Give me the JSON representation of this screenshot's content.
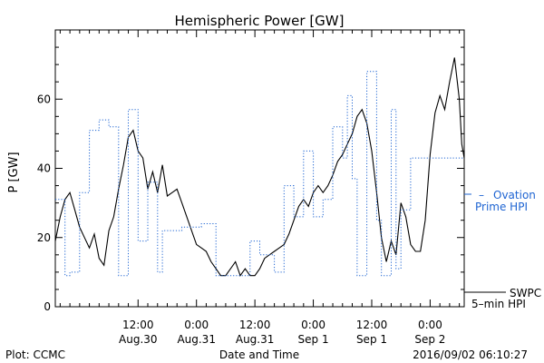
{
  "chart_data": {
    "type": "line",
    "title": "Hemispheric Power [GW]",
    "xlabel": "Date and Time",
    "ylabel": "P [GW]",
    "xlim": [
      "2016-08-29T19:00",
      "2016-09-02T07:00"
    ],
    "ylim": [
      0,
      80
    ],
    "y_ticks": [
      0,
      20,
      40,
      60
    ],
    "x_ticks": [
      {
        "t": "2016-08-30T12:00",
        "line1": "12:00",
        "line2": "Aug.30"
      },
      {
        "t": "2016-08-31T00:00",
        "line1": "0:00",
        "line2": "Aug.31"
      },
      {
        "t": "2016-08-31T12:00",
        "line1": "12:00",
        "line2": "Aug.31"
      },
      {
        "t": "2016-09-01T00:00",
        "line1": "0:00",
        "line2": "Sep 1"
      },
      {
        "t": "2016-09-01T12:00",
        "line1": "12:00",
        "line2": "Sep 1"
      },
      {
        "t": "2016-09-02T00:00",
        "line1": "0:00",
        "line2": "Sep 2"
      }
    ],
    "grid": false,
    "legend_position": "right",
    "series": [
      {
        "name": "SWPC 5-min HPI",
        "style": "solid",
        "color": "#000000",
        "points": [
          [
            "2016-08-29T19:00",
            19
          ],
          [
            "2016-08-29T20:00",
            26
          ],
          [
            "2016-08-29T21:00",
            31
          ],
          [
            "2016-08-29T22:00",
            33
          ],
          [
            "2016-08-29T23:00",
            28
          ],
          [
            "2016-08-30T00:00",
            23
          ],
          [
            "2016-08-30T01:00",
            20
          ],
          [
            "2016-08-30T02:00",
            17
          ],
          [
            "2016-08-30T03:00",
            21
          ],
          [
            "2016-08-30T04:00",
            14
          ],
          [
            "2016-08-30T05:00",
            12
          ],
          [
            "2016-08-30T06:00",
            22
          ],
          [
            "2016-08-30T07:00",
            26
          ],
          [
            "2016-08-30T08:00",
            34
          ],
          [
            "2016-08-30T09:00",
            41
          ],
          [
            "2016-08-30T10:00",
            49
          ],
          [
            "2016-08-30T11:00",
            51
          ],
          [
            "2016-08-30T12:00",
            45
          ],
          [
            "2016-08-30T13:00",
            43
          ],
          [
            "2016-08-30T14:00",
            34
          ],
          [
            "2016-08-30T15:00",
            39
          ],
          [
            "2016-08-30T16:00",
            33
          ],
          [
            "2016-08-30T17:00",
            41
          ],
          [
            "2016-08-30T18:00",
            32
          ],
          [
            "2016-08-30T19:00",
            33
          ],
          [
            "2016-08-30T20:00",
            34
          ],
          [
            "2016-08-30T21:00",
            30
          ],
          [
            "2016-08-30T22:00",
            26
          ],
          [
            "2016-08-30T23:00",
            22
          ],
          [
            "2016-08-31T00:00",
            18
          ],
          [
            "2016-08-31T01:00",
            17
          ],
          [
            "2016-08-31T02:00",
            16
          ],
          [
            "2016-08-31T03:00",
            13
          ],
          [
            "2016-08-31T04:00",
            11
          ],
          [
            "2016-08-31T05:00",
            9
          ],
          [
            "2016-08-31T06:00",
            9
          ],
          [
            "2016-08-31T07:00",
            11
          ],
          [
            "2016-08-31T08:00",
            13
          ],
          [
            "2016-08-31T09:00",
            9
          ],
          [
            "2016-08-31T10:00",
            11
          ],
          [
            "2016-08-31T11:00",
            9
          ],
          [
            "2016-08-31T12:00",
            9
          ],
          [
            "2016-08-31T13:00",
            11
          ],
          [
            "2016-08-31T14:00",
            14
          ],
          [
            "2016-08-31T15:00",
            15
          ],
          [
            "2016-08-31T16:00",
            16
          ],
          [
            "2016-08-31T17:00",
            17
          ],
          [
            "2016-08-31T18:00",
            18
          ],
          [
            "2016-08-31T19:00",
            21
          ],
          [
            "2016-08-31T20:00",
            25
          ],
          [
            "2016-08-31T21:00",
            29
          ],
          [
            "2016-08-31T22:00",
            31
          ],
          [
            "2016-08-31T23:00",
            29
          ],
          [
            "2016-09-01T00:00",
            33
          ],
          [
            "2016-09-01T01:00",
            35
          ],
          [
            "2016-09-01T02:00",
            33
          ],
          [
            "2016-09-01T03:00",
            35
          ],
          [
            "2016-09-01T04:00",
            38
          ],
          [
            "2016-09-01T05:00",
            42
          ],
          [
            "2016-09-01T06:00",
            44
          ],
          [
            "2016-09-01T07:00",
            47
          ],
          [
            "2016-09-01T08:00",
            50
          ],
          [
            "2016-09-01T09:00",
            55
          ],
          [
            "2016-09-01T10:00",
            57
          ],
          [
            "2016-09-01T11:00",
            53
          ],
          [
            "2016-09-01T12:00",
            45
          ],
          [
            "2016-09-01T13:00",
            33
          ],
          [
            "2016-09-01T14:00",
            20
          ],
          [
            "2016-09-01T15:00",
            13
          ],
          [
            "2016-09-01T16:00",
            19
          ],
          [
            "2016-09-01T17:00",
            15
          ],
          [
            "2016-09-01T18:00",
            30
          ],
          [
            "2016-09-01T19:00",
            26
          ],
          [
            "2016-09-01T20:00",
            18
          ],
          [
            "2016-09-01T21:00",
            16
          ],
          [
            "2016-09-01T22:00",
            16
          ],
          [
            "2016-09-01T23:00",
            25
          ],
          [
            "2016-09-02T00:00",
            44
          ],
          [
            "2016-09-02T01:00",
            56
          ],
          [
            "2016-09-02T02:00",
            61
          ],
          [
            "2016-09-02T03:00",
            57
          ],
          [
            "2016-09-02T04:00",
            65
          ],
          [
            "2016-09-02T05:00",
            72
          ],
          [
            "2016-09-02T06:00",
            60
          ],
          [
            "2016-09-02T06:30",
            47
          ],
          [
            "2016-09-02T07:00",
            43
          ]
        ]
      },
      {
        "name": "Ovation Prime HPI",
        "style": "dotted-step",
        "color": "#1e64d2",
        "points": [
          [
            "2016-08-29T19:00",
            31
          ],
          [
            "2016-08-29T21:00",
            9
          ],
          [
            "2016-08-29T22:00",
            10
          ],
          [
            "2016-08-30T00:00",
            33
          ],
          [
            "2016-08-30T02:00",
            51
          ],
          [
            "2016-08-30T04:00",
            54
          ],
          [
            "2016-08-30T06:00",
            52
          ],
          [
            "2016-08-30T08:00",
            9
          ],
          [
            "2016-08-30T09:00",
            9
          ],
          [
            "2016-08-30T10:00",
            57
          ],
          [
            "2016-08-30T12:00",
            19
          ],
          [
            "2016-08-30T14:00",
            36
          ],
          [
            "2016-08-30T16:00",
            10
          ],
          [
            "2016-08-30T17:00",
            22
          ],
          [
            "2016-08-30T21:00",
            23
          ],
          [
            "2016-08-31T01:00",
            24
          ],
          [
            "2016-08-31T04:00",
            9
          ],
          [
            "2016-08-31T07:00",
            9
          ],
          [
            "2016-08-31T11:00",
            19
          ],
          [
            "2016-08-31T13:00",
            15
          ],
          [
            "2016-08-31T16:00",
            10
          ],
          [
            "2016-08-31T18:00",
            35
          ],
          [
            "2016-08-31T20:00",
            26
          ],
          [
            "2016-08-31T22:00",
            45
          ],
          [
            "2016-09-01T00:00",
            26
          ],
          [
            "2016-09-01T02:00",
            31
          ],
          [
            "2016-09-01T04:00",
            52
          ],
          [
            "2016-09-01T06:00",
            43
          ],
          [
            "2016-09-01T07:00",
            61
          ],
          [
            "2016-09-01T08:00",
            37
          ],
          [
            "2016-09-01T09:00",
            9
          ],
          [
            "2016-09-01T11:00",
            68
          ],
          [
            "2016-09-01T13:00",
            25
          ],
          [
            "2016-09-01T14:00",
            9
          ],
          [
            "2016-09-01T16:00",
            57
          ],
          [
            "2016-09-01T17:00",
            11
          ],
          [
            "2016-09-01T18:00",
            28
          ],
          [
            "2016-09-01T20:00",
            43
          ],
          [
            "2016-09-01T22:00",
            43
          ],
          [
            "2016-09-02T02:00",
            43
          ],
          [
            "2016-09-02T06:00",
            43
          ],
          [
            "2016-09-02T07:00",
            43
          ]
        ]
      }
    ]
  },
  "legend": {
    "ovation_marker": "–",
    "ovation_line1": "Ovation",
    "ovation_line2": "Prime HPI",
    "swpc_line1": "SWPC",
    "swpc_line2": "5–min HPI"
  },
  "footer": {
    "left": "Plot: CCMC",
    "right": "2016/09/02 06:10:27"
  }
}
